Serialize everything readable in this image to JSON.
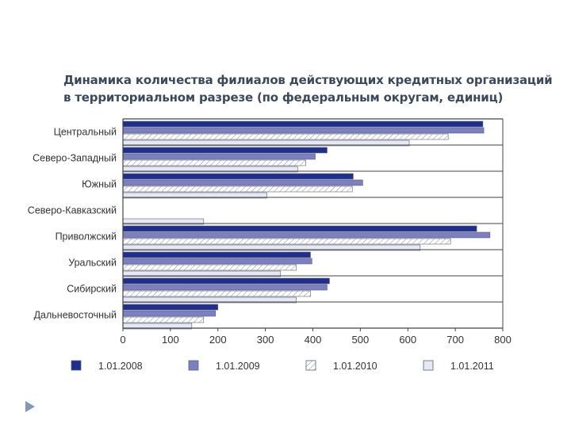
{
  "slide": {
    "title_line1": "Динамика количества филиалов действующих кредитных организаций",
    "title_line2": "в территориальном разрезе (по федеральным округам, единиц)"
  },
  "chart_data": {
    "type": "bar",
    "orientation": "horizontal",
    "title": "Динамика количества филиалов действующих кредитных организаций в территориальном разрезе (по федеральным округам, единиц)",
    "categories": [
      "Центральный",
      "Северо-Западный",
      "Южный",
      "Северо-Кавказский",
      "Приволжский",
      "Уральский",
      "Сибирский",
      "Дальневосточный"
    ],
    "series": [
      {
        "name": "1.01.2008",
        "color": "#1f2f8f",
        "pattern": "solid",
        "values": [
          758,
          430,
          485,
          null,
          745,
          395,
          435,
          200
        ]
      },
      {
        "name": "1.01.2009",
        "color": "#7b80c2",
        "pattern": "solid",
        "values": [
          760,
          405,
          505,
          null,
          773,
          398,
          430,
          195
        ]
      },
      {
        "name": "1.01.2010",
        "color": "#ffffff",
        "pattern": "hatched",
        "values": [
          685,
          385,
          483,
          null,
          690,
          365,
          395,
          170
        ]
      },
      {
        "name": "1.01.2011",
        "color": "#e6e8f5",
        "pattern": "light",
        "values": [
          603,
          368,
          303,
          170,
          626,
          332,
          365,
          145
        ]
      }
    ],
    "xlim": [
      0,
      800
    ],
    "xticks": [
      0,
      100,
      200,
      300,
      400,
      500,
      600,
      700,
      800
    ],
    "grid": "horizontal separators between categories",
    "legend_position": "bottom"
  }
}
